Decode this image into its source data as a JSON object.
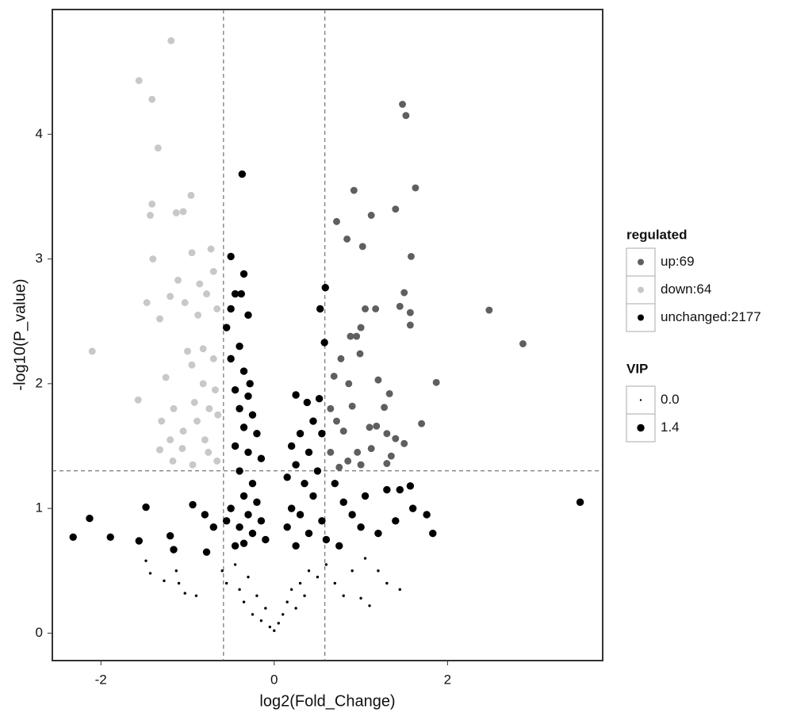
{
  "chart_data": {
    "type": "scatter",
    "x_label": "log2(Fold_Change)",
    "y_label": "-log10(P_value)",
    "xlim": [
      -2.56,
      3.79
    ],
    "ylim": [
      -0.22,
      5.0
    ],
    "xticks": [
      -2,
      0,
      2
    ],
    "yticks": [
      0,
      1,
      2,
      3,
      4
    ],
    "vlines": [
      -0.585,
      0.585
    ],
    "hline": 1.301,
    "color_legend_title": "regulated",
    "size_legend_title": "VIP",
    "size_legend": [
      {
        "value": 0,
        "label": "0.0"
      },
      {
        "value": 1.4,
        "label": "1.4"
      }
    ],
    "series": [
      {
        "name": "up:69",
        "color": "#5f5f5f",
        "x": [
          1.48,
          1.52,
          1.63,
          0.92,
          1.12,
          1.4,
          0.72,
          0.84,
          1.02,
          1.58,
          1.5,
          1.45,
          1.57,
          2.48,
          2.87,
          1.57,
          1.05,
          1.17,
          1.0,
          0.88,
          0.95,
          0.99,
          0.77,
          0.69,
          0.86,
          1.2,
          1.87,
          1.33,
          0.9,
          0.65,
          1.27,
          1.7,
          1.1,
          1.18,
          1.3,
          0.72,
          0.8,
          1.4,
          1.5,
          0.96,
          1.12,
          0.65,
          1.35,
          0.85,
          1.0,
          1.3,
          0.75
        ],
        "y": [
          4.24,
          4.15,
          3.57,
          3.55,
          3.35,
          3.4,
          3.3,
          3.16,
          3.1,
          3.02,
          2.73,
          2.62,
          2.57,
          2.59,
          2.32,
          2.47,
          2.6,
          2.6,
          2.45,
          2.38,
          2.38,
          2.24,
          2.2,
          2.06,
          2.0,
          2.03,
          2.01,
          1.92,
          1.82,
          1.8,
          1.81,
          1.68,
          1.65,
          1.66,
          1.6,
          1.7,
          1.62,
          1.56,
          1.52,
          1.45,
          1.48,
          1.45,
          1.42,
          1.38,
          1.35,
          1.36,
          1.33
        ],
        "vip": [
          1.3,
          1.3,
          1.3,
          1.3,
          1.3,
          1.3,
          1.3,
          1.3,
          1.3,
          1.3,
          1.3,
          1.3,
          1.3,
          1.3,
          1.3,
          1.3,
          1.3,
          1.3,
          1.3,
          1.3,
          1.3,
          1.3,
          1.3,
          1.3,
          1.3,
          1.3,
          1.3,
          1.3,
          1.3,
          1.3,
          1.3,
          1.3,
          1.3,
          1.3,
          1.3,
          1.3,
          1.3,
          1.3,
          1.3,
          1.3,
          1.3,
          1.3,
          1.3,
          1.3,
          1.3,
          1.3,
          1.3
        ]
      },
      {
        "name": "down:64",
        "color": "#c8c8c8",
        "x": [
          -1.19,
          -1.56,
          -1.41,
          -1.34,
          -0.96,
          -1.41,
          -1.43,
          -1.13,
          -1.05,
          -1.4,
          -0.95,
          -0.73,
          -1.11,
          -0.7,
          -0.86,
          -1.2,
          -1.47,
          -1.03,
          -0.78,
          -0.66,
          -1.32,
          -0.88,
          -2.1,
          -1.0,
          -0.82,
          -0.95,
          -0.7,
          -1.25,
          -0.82,
          -0.68,
          -1.57,
          -0.92,
          -0.75,
          -1.16,
          -0.65,
          -1.3,
          -0.89,
          -1.05,
          -0.8,
          -1.2,
          -1.06,
          -1.32,
          -0.76,
          -1.17,
          -0.94,
          -0.66
        ],
        "y": [
          4.75,
          4.43,
          4.28,
          3.89,
          3.51,
          3.44,
          3.35,
          3.37,
          3.38,
          3.0,
          3.05,
          3.08,
          2.83,
          2.9,
          2.8,
          2.7,
          2.65,
          2.65,
          2.72,
          2.6,
          2.52,
          2.55,
          2.26,
          2.26,
          2.28,
          2.15,
          2.2,
          2.05,
          2.0,
          1.95,
          1.87,
          1.85,
          1.8,
          1.8,
          1.75,
          1.7,
          1.7,
          1.62,
          1.55,
          1.55,
          1.48,
          1.47,
          1.45,
          1.38,
          1.35,
          1.38
        ],
        "vip": [
          1.3,
          1.3,
          1.3,
          1.3,
          1.3,
          1.3,
          1.3,
          1.3,
          1.3,
          1.3,
          1.3,
          1.3,
          1.3,
          1.3,
          1.3,
          1.3,
          1.3,
          1.3,
          1.3,
          1.3,
          1.3,
          1.3,
          1.3,
          1.3,
          1.3,
          1.3,
          1.3,
          1.3,
          1.3,
          1.3,
          1.3,
          1.3,
          1.3,
          1.3,
          1.3,
          1.3,
          1.3,
          1.3,
          1.3,
          1.3,
          1.3,
          1.3,
          1.3,
          1.3,
          1.3,
          1.3
        ]
      },
      {
        "name": "unchanged:2177",
        "color": "#000000",
        "x": [
          -0.37,
          -0.5,
          -0.35,
          -0.45,
          -0.38,
          -0.5,
          -0.3,
          -0.55,
          -0.4,
          -0.5,
          -0.35,
          -0.28,
          -0.45,
          -0.3,
          -0.4,
          -0.25,
          -0.35,
          -0.2,
          -0.45,
          -0.3,
          -0.15,
          -0.4,
          -0.25,
          -0.35,
          -0.2,
          -0.3,
          -0.15,
          -0.4,
          -0.25,
          -0.35,
          -0.1,
          -0.5,
          -0.55,
          -0.45,
          0.59,
          0.53,
          0.58,
          0.52,
          0.25,
          0.38,
          0.45,
          0.3,
          0.55,
          0.2,
          0.4,
          0.25,
          0.5,
          0.15,
          0.35,
          0.45,
          0.2,
          0.3,
          0.55,
          0.15,
          0.4,
          0.25,
          0.6,
          0.7,
          0.8,
          0.9,
          1.0,
          1.2,
          0.75,
          1.05,
          1.3,
          1.45,
          1.57,
          1.4,
          1.6,
          3.53,
          1.76,
          1.83,
          -0.94,
          -1.48,
          -2.13,
          -2.32,
          -1.89,
          -1.56,
          -1.2,
          -1.16,
          -0.78,
          -0.8,
          -0.7,
          -1.48,
          -1.43,
          -1.27,
          -1.13,
          -1.03,
          -0.9,
          -1.1,
          -0.6,
          -0.55,
          -0.45,
          -0.4,
          -0.35,
          -0.3,
          -0.25,
          -0.2,
          -0.15,
          -0.1,
          -0.05,
          0,
          0.05,
          0.1,
          0.15,
          0.2,
          0.25,
          0.3,
          0.35,
          0.4,
          0.5,
          0.6,
          0.7,
          0.8,
          0.9,
          1.0,
          1.1,
          1.3,
          1.45,
          1.05,
          1.2
        ],
        "y": [
          3.68,
          3.02,
          2.88,
          2.72,
          2.72,
          2.6,
          2.55,
          2.45,
          2.3,
          2.2,
          2.1,
          2.0,
          1.95,
          1.9,
          1.8,
          1.75,
          1.65,
          1.6,
          1.5,
          1.45,
          1.4,
          1.3,
          1.2,
          1.1,
          1.05,
          0.95,
          0.9,
          0.85,
          0.8,
          0.72,
          0.75,
          1.0,
          0.9,
          0.7,
          2.77,
          2.6,
          2.33,
          1.88,
          1.91,
          1.85,
          1.7,
          1.6,
          1.6,
          1.5,
          1.45,
          1.35,
          1.3,
          1.25,
          1.2,
          1.1,
          1.0,
          0.95,
          0.9,
          0.85,
          0.8,
          0.7,
          0.75,
          1.2,
          1.05,
          0.95,
          0.85,
          0.8,
          0.7,
          1.1,
          1.15,
          1.15,
          1.18,
          0.9,
          1.0,
          1.05,
          0.95,
          0.8,
          1.03,
          1.01,
          0.92,
          0.77,
          0.77,
          0.74,
          0.78,
          0.67,
          0.65,
          0.95,
          0.85,
          0.58,
          0.48,
          0.42,
          0.5,
          0.32,
          0.3,
          0.4,
          0.5,
          0.4,
          0.55,
          0.35,
          0.25,
          0.45,
          0.15,
          0.3,
          0.1,
          0.2,
          0.05,
          0.02,
          0.08,
          0.15,
          0.25,
          0.35,
          0.2,
          0.4,
          0.3,
          0.5,
          0.45,
          0.55,
          0.4,
          0.3,
          0.5,
          0.28,
          0.22,
          0.4,
          0.35,
          0.6,
          0.5
        ],
        "vip": [
          1.4,
          1.4,
          1.4,
          1.4,
          1.4,
          1.4,
          1.4,
          1.4,
          1.4,
          1.4,
          1.4,
          1.4,
          1.4,
          1.4,
          1.4,
          1.4,
          1.4,
          1.4,
          1.4,
          1.4,
          1.4,
          1.4,
          1.4,
          1.4,
          1.4,
          1.4,
          1.4,
          1.4,
          1.4,
          1.4,
          1.4,
          1.4,
          1.4,
          1.4,
          1.4,
          1.4,
          1.4,
          1.4,
          1.4,
          1.4,
          1.4,
          1.4,
          1.4,
          1.4,
          1.4,
          1.4,
          1.4,
          1.4,
          1.4,
          1.4,
          1.4,
          1.4,
          1.4,
          1.4,
          1.4,
          1.4,
          1.4,
          1.4,
          1.4,
          1.4,
          1.4,
          1.4,
          1.4,
          1.4,
          1.4,
          1.4,
          1.4,
          1.4,
          1.4,
          1.4,
          1.4,
          1.4,
          1.4,
          1.4,
          1.4,
          1.4,
          1.4,
          1.4,
          1.4,
          1.4,
          1.4,
          1.4,
          1.4,
          0.2,
          0.2,
          0.2,
          0.2,
          0.2,
          0.2,
          0.2,
          0.2,
          0.2,
          0.2,
          0.2,
          0.2,
          0.2,
          0.2,
          0.2,
          0.2,
          0.2,
          0.2,
          0.2,
          0.2,
          0.2,
          0.2,
          0.2,
          0.2,
          0.2,
          0.2,
          0.2,
          0.2,
          0.2,
          0.2,
          0.2,
          0.2,
          0.2,
          0.2,
          0.2,
          0.2,
          0.2,
          0.2
        ]
      }
    ]
  }
}
